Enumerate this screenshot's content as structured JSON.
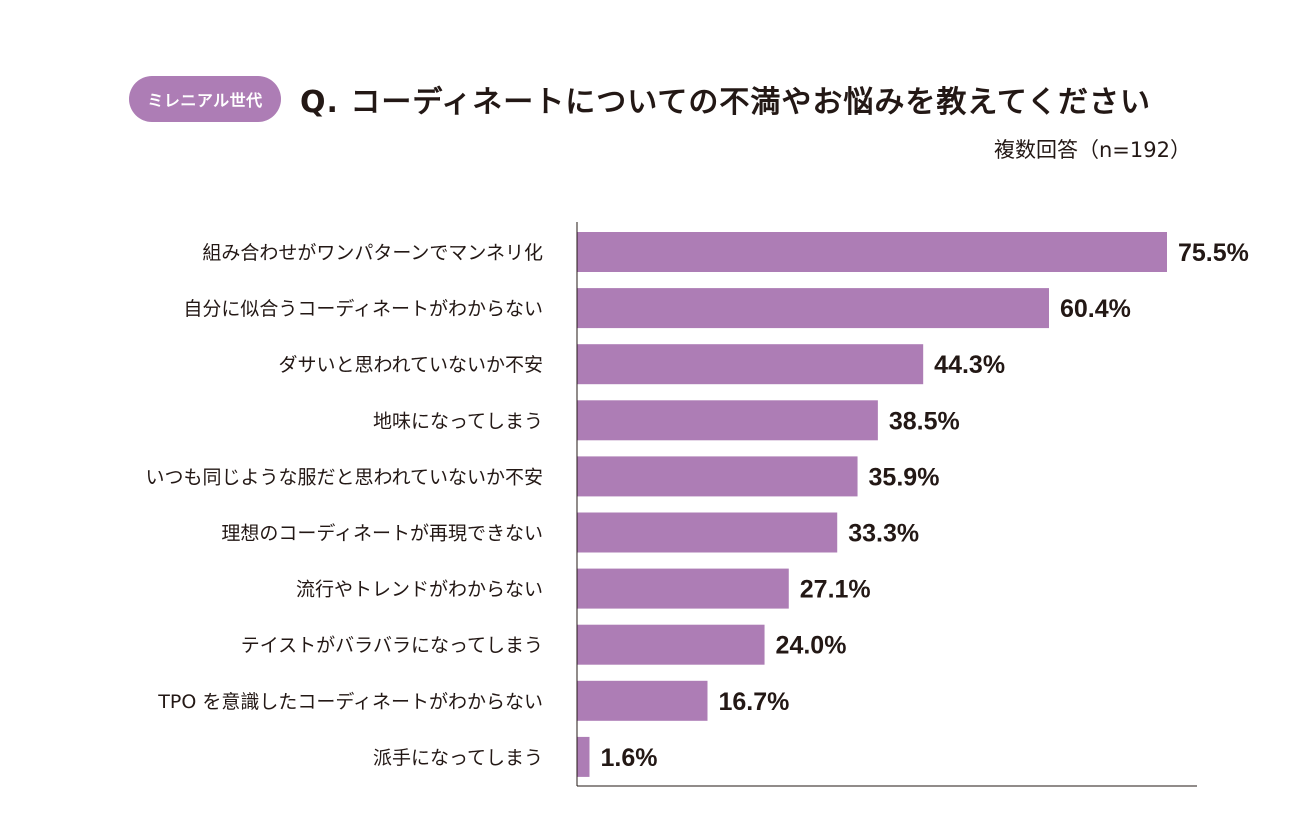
{
  "badge": "ミレニアル世代",
  "title": "Q. コーディネートについての不満やお悩みを教えてください",
  "note": "複数回答（n=192）",
  "colors": {
    "bar": "#ad7db5",
    "badge": "#ad7db5",
    "text": "#231815",
    "axis": "#231815"
  },
  "chart_data": {
    "type": "bar",
    "orientation": "horizontal",
    "title": "Q. コーディネートについての不満やお悩みを教えてください",
    "categories": [
      "組み合わせがワンパターンでマンネリ化",
      "自分に似合うコーディネートがわからない",
      "ダサいと思われていないか不安",
      "地味になってしまう",
      "いつも同じような服だと思われていないか不安",
      "理想のコーディネートが再現できない",
      "流行やトレンドがわからない",
      "テイストがバラバラになってしまう",
      "TPO を意識したコーディネートがわからない",
      "派手になってしまう"
    ],
    "values": [
      75.5,
      60.4,
      44.3,
      38.5,
      35.9,
      33.3,
      27.1,
      24.0,
      16.7,
      1.6
    ],
    "value_labels": [
      "75.5%",
      "60.4%",
      "44.3%",
      "38.5%",
      "35.9%",
      "33.3%",
      "27.1%",
      "24.0%",
      "16.7%",
      "1.6%"
    ],
    "xlim": [
      0,
      80
    ],
    "unit": "%",
    "grid": false,
    "legend": "none"
  }
}
